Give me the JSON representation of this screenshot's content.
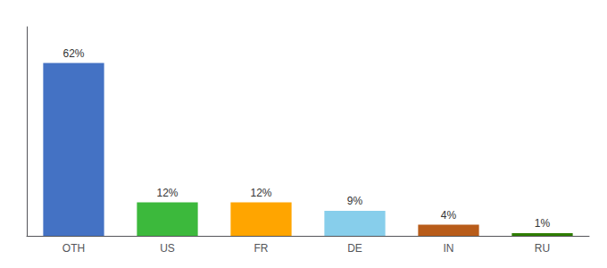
{
  "chart_data": {
    "type": "bar",
    "categories": [
      "OTH",
      "US",
      "FR",
      "DE",
      "IN",
      "RU"
    ],
    "values": [
      62,
      12,
      12,
      9,
      4,
      1
    ],
    "value_labels": [
      "62%",
      "12%",
      "12%",
      "9%",
      "4%",
      "1%"
    ],
    "colors": [
      "#4472C4",
      "#3CB93C",
      "#FFA500",
      "#87CEEB",
      "#B85C1A",
      "#2E7D00"
    ],
    "ylim": [
      0,
      75
    ],
    "data_labels": true,
    "tick_labels": "x",
    "grid": false
  }
}
